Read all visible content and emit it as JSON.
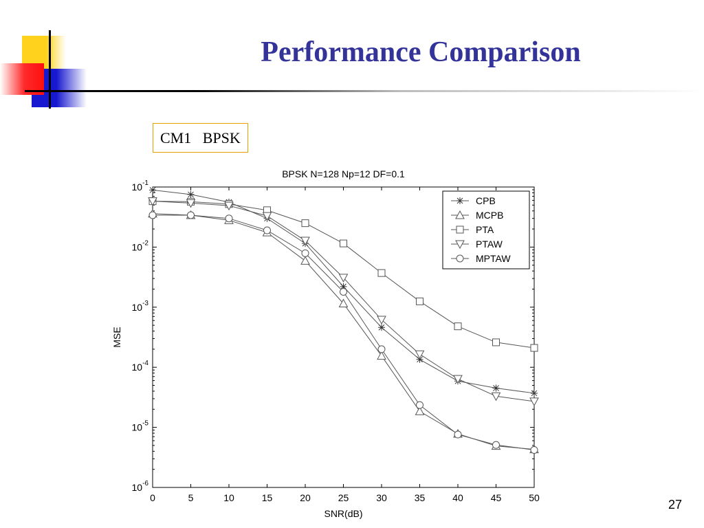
{
  "slide": {
    "title": "Performance Comparison",
    "subtitle": "CM1   BPSK",
    "page_number": "27"
  },
  "colors": {
    "title": "#333399",
    "series": "#555555",
    "box_border": "#e8a000"
  },
  "chart_data": {
    "type": "line",
    "title": "BPSK  N=128  Np=12  DF=0.1",
    "xlabel": "SNR(dB)",
    "ylabel": "MSE",
    "xlim": [
      0,
      50
    ],
    "ylim": [
      1e-06,
      0.1
    ],
    "yscale": "log",
    "x": [
      0,
      5,
      10,
      15,
      20,
      25,
      30,
      35,
      40,
      45,
      50
    ],
    "x_tick_labels": [
      "0",
      "5",
      "10",
      "15",
      "20",
      "25",
      "30",
      "35",
      "40",
      "45",
      "50"
    ],
    "y_ticks": [
      {
        "base": "10",
        "exp": "-1"
      },
      {
        "base": "10",
        "exp": "-2"
      },
      {
        "base": "10",
        "exp": "-3"
      },
      {
        "base": "10",
        "exp": "-4"
      },
      {
        "base": "10",
        "exp": "-5"
      },
      {
        "base": "10",
        "exp": "-6"
      }
    ],
    "legend": "top-right",
    "grid": false,
    "series": [
      {
        "name": "CPB",
        "marker": "star",
        "values": [
          0.089,
          0.075,
          0.056,
          0.03,
          0.0115,
          0.0022,
          0.00046,
          0.000135,
          5.9e-05,
          4.5e-05,
          3.7e-05
        ]
      },
      {
        "name": "MCPB",
        "marker": "triangle-up",
        "values": [
          0.036,
          0.034,
          0.028,
          0.0175,
          0.0059,
          0.00115,
          0.000155,
          1.85e-05,
          7.8e-06,
          4.9e-06,
          4.3e-06
        ]
      },
      {
        "name": "PTA",
        "marker": "square",
        "values": [
          0.058,
          0.057,
          0.052,
          0.041,
          0.025,
          0.0115,
          0.0037,
          0.00125,
          0.00048,
          0.00026,
          0.00021
        ]
      },
      {
        "name": "PTAW",
        "marker": "triangle-down",
        "values": [
          0.058,
          0.054,
          0.049,
          0.033,
          0.0128,
          0.0031,
          0.00062,
          0.000165,
          6.4e-05,
          3.3e-05,
          2.7e-05
        ]
      },
      {
        "name": "MPTAW",
        "marker": "circle",
        "values": [
          0.034,
          0.034,
          0.03,
          0.019,
          0.0079,
          0.0018,
          0.0002,
          2.35e-05,
          7.6e-06,
          5.1e-06,
          4.2e-06
        ]
      }
    ]
  }
}
